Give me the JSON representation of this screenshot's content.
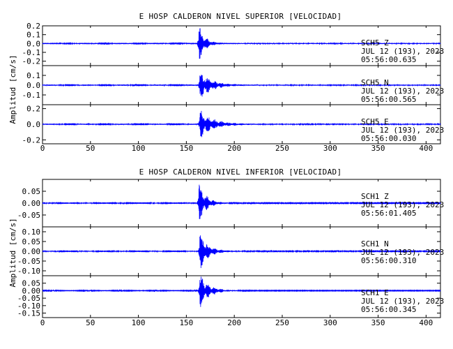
{
  "chart_data": [
    {
      "type": "line",
      "title": "E HOSP CALDERON NIVEL SUPERIOR [VELOCIDAD]",
      "ylabel": "Amplitud [cm/s]",
      "xlabel": "",
      "xlim": [
        0,
        415
      ],
      "x_ticks": [
        "0",
        "50",
        "100",
        "150",
        "200",
        "250",
        "300",
        "350",
        "400"
      ],
      "x_tick_values": [
        0,
        50,
        100,
        150,
        200,
        250,
        300,
        350,
        400
      ],
      "series_color": "#0000ff",
      "panels": [
        {
          "name": "SCH5 Z",
          "station": "SCH5",
          "component": "Z",
          "date": "JUL 12 (193), 2023",
          "time": "05:56:00.635",
          "ylim": [
            -0.25,
            0.2
          ],
          "y_ticks": [
            "0.2",
            "0.1",
            "0.0",
            "-0.1",
            "-0.2"
          ],
          "y_tick_values": [
            0.2,
            0.1,
            0.0,
            -0.1,
            -0.2
          ],
          "noise": 0.006,
          "onset": 163,
          "peak": 0.22,
          "decay": 6
        },
        {
          "name": "SCH5 N",
          "station": "SCH5",
          "component": "N",
          "date": "JUL 12 (193), 2023",
          "time": "05:56:00.565",
          "ylim": [
            -0.2,
            0.2
          ],
          "y_ticks": [
            "0.1",
            "0.0",
            "-0.1"
          ],
          "y_tick_values": [
            0.1,
            0.0,
            -0.1
          ],
          "noise": 0.005,
          "onset": 164,
          "peak": 0.17,
          "decay": 11
        },
        {
          "name": "SCH5 E",
          "station": "SCH5",
          "component": "E",
          "date": "JUL 12 (193), 2023",
          "time": "05:56:00.030",
          "ylim": [
            -0.25,
            0.25
          ],
          "y_ticks": [
            "0.2",
            "0.0",
            "-0.2"
          ],
          "y_tick_values": [
            0.2,
            0.0,
            -0.2
          ],
          "noise": 0.006,
          "onset": 164,
          "peak": 0.2,
          "decay": 13
        }
      ]
    },
    {
      "type": "line",
      "title": "E HOSP CALDERON NIVEL INFERIOR [VELOCIDAD]",
      "ylabel": "Amplitud [cm/s]",
      "xlabel": "",
      "xlim": [
        0,
        415
      ],
      "x_ticks": [
        "0",
        "50",
        "100",
        "150",
        "200",
        "250",
        "300",
        "350",
        "400"
      ],
      "x_tick_values": [
        0,
        50,
        100,
        150,
        200,
        250,
        300,
        350,
        400
      ],
      "series_color": "#0000ff",
      "panels": [
        {
          "name": "SCH1 Z",
          "station": "SCH1",
          "component": "Z",
          "date": "JUL 12 (193), 2023",
          "time": "05:56:01.405",
          "ylim": [
            -0.1,
            0.1
          ],
          "y_ticks": [
            "0.05",
            "0.00",
            "-0.05"
          ],
          "y_tick_values": [
            0.05,
            0.0,
            -0.05
          ],
          "noise": 0.0015,
          "onset": 163,
          "peak": 0.1,
          "decay": 7
        },
        {
          "name": "SCH1 N",
          "station": "SCH1",
          "component": "N",
          "date": "JUL 12 (193), 2023",
          "time": "05:56:00.310",
          "ylim": [
            -0.125,
            0.125
          ],
          "y_ticks": [
            "0.10",
            "0.05",
            "0.00",
            "-0.05",
            "-0.10"
          ],
          "y_tick_values": [
            0.1,
            0.05,
            0.0,
            -0.05,
            -0.1
          ],
          "noise": 0.002,
          "onset": 164,
          "peak": 0.11,
          "decay": 8
        },
        {
          "name": "SCH1 E",
          "station": "SCH1",
          "component": "E",
          "date": "JUL 12 (193), 2023",
          "time": "05:56:00.345",
          "ylim": [
            -0.18,
            0.1
          ],
          "y_ticks": [
            "0.05",
            "0.00",
            "-0.05",
            "-0.10",
            "-0.15"
          ],
          "y_tick_values": [
            0.05,
            0.0,
            -0.05,
            -0.1,
            -0.15
          ],
          "noise": 0.002,
          "onset": 164,
          "peak": 0.13,
          "decay": 9
        }
      ]
    }
  ]
}
